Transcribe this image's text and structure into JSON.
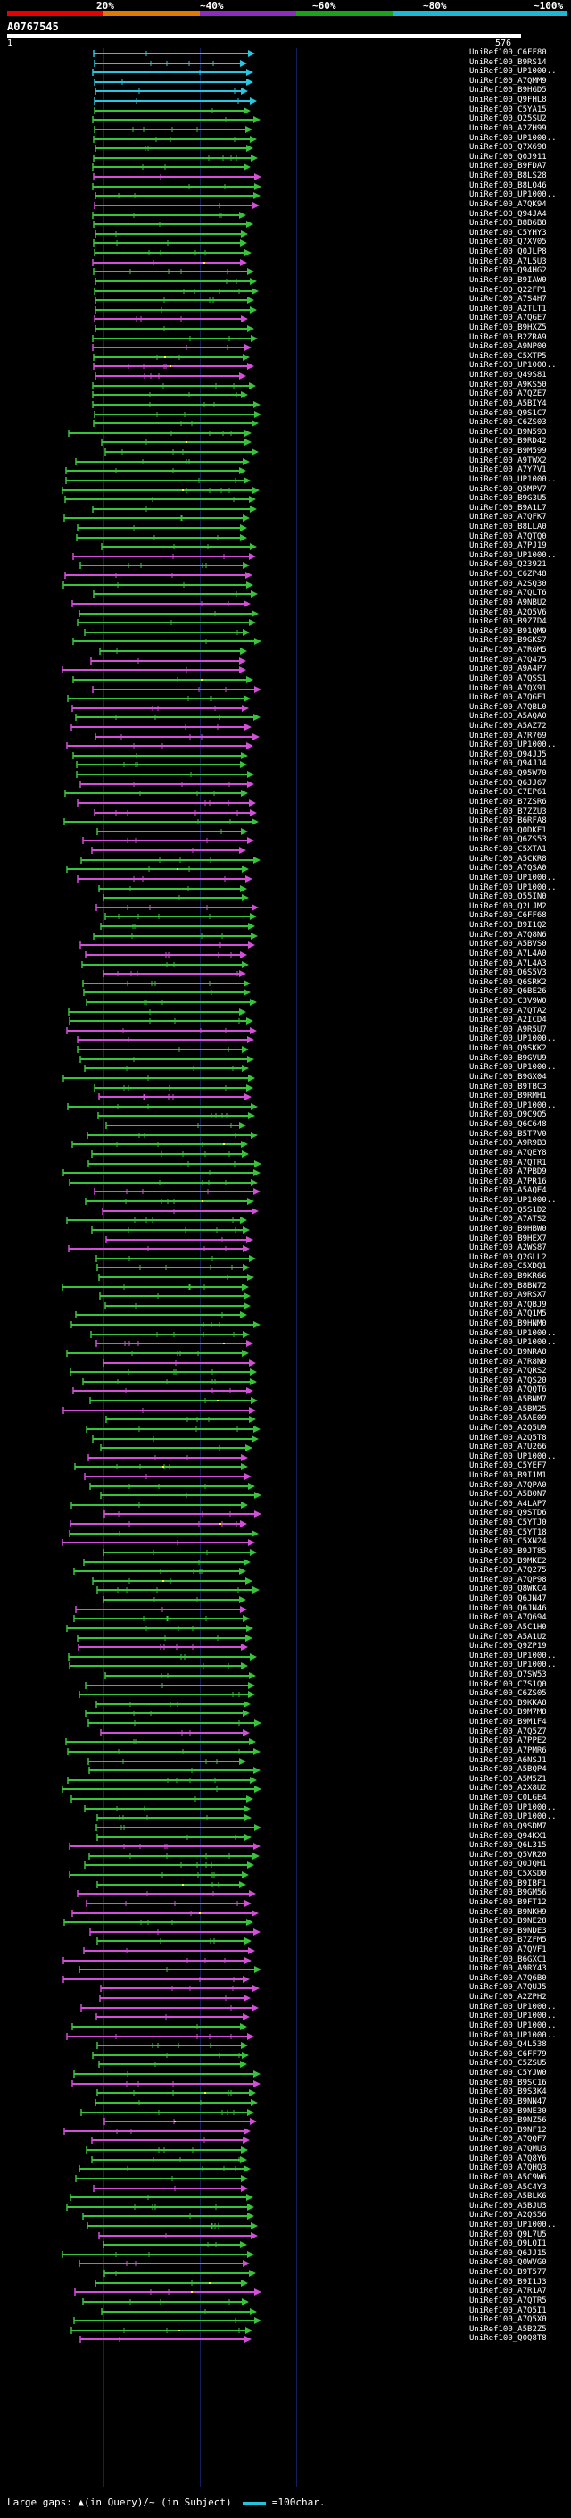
{
  "scale": {
    "ticks": [
      "20%",
      "~40%",
      "~60%",
      "~80%",
      "~100%"
    ],
    "colors": [
      "#e60000",
      "#e07a00",
      "#8c2bbd",
      "#1aa31a",
      "#1cb7d4"
    ]
  },
  "query": {
    "name": "A0767545",
    "start": "1",
    "end": "576"
  },
  "hit_colors": {
    "cyan": "#28c6e0",
    "green": "#38c43a",
    "magenta": "#d24fd8",
    "gap": "#ffff00",
    "bg_line": "#13215a"
  },
  "labels": [
    "UniRef100_C6FF80",
    "UniRef100_B9RS14",
    "UniRef100_UP1000..",
    "UniRef100_A7QMM9",
    "UniRef100_B9HGD5",
    "UniRef100_Q9FHL8",
    "UniRef100_C5YA15",
    "UniRef100_Q25SU2",
    "UniRef100_A2ZH99",
    "UniRef100_UP1000..",
    "UniRef100_Q7X698",
    "UniRef100_Q0J911",
    "UniRef100_B9FDA7",
    "UniRef100_B8LS28",
    "UniRef100_B8LQ46",
    "UniRef100_UP1000..",
    "UniRef100_A7QK94",
    "UniRef100_Q94JA4",
    "UniRef100_B8B6B8",
    "UniRef100_C5YHY3",
    "UniRef100_Q7XV05",
    "UniRef100_Q0JLP8",
    "UniRef100_A7L5U3",
    "UniRef100_Q94HG2",
    "UniRef100_B9IAW0",
    "UniRef100_Q22FP1",
    "UniRef100_A7S4H7",
    "UniRef100_A2TLT1",
    "UniRef100_A7QGE7",
    "UniRef100_B9HXZ5",
    "UniRef100_B2ZRA9",
    "UniRef100_A9NP00",
    "UniRef100_C5XTP5",
    "UniRef100_UP1000..",
    "UniRef100_Q49S81",
    "UniRef100_A9KS50",
    "UniRef100_A7QZE7",
    "UniRef100_A5BIY4",
    "UniRef100_Q9S1C7",
    "UniRef100_C6ZS03",
    "UniRef100_B9N593",
    "UniRef100_B9RD42",
    "UniRef100_B9M599",
    "UniRef100_A9TWX2",
    "UniRef100_A7Y7V1",
    "UniRef100_UP1000..",
    "UniRef100_Q5MPV7",
    "UniRef100_B9G3U5",
    "UniRef100_B9A1L7",
    "UniRef100_A7QFK7",
    "UniRef100_B8LLA0",
    "UniRef100_A7QTQ0",
    "UniRef100_A7PJ19",
    "UniRef100_UP1000..",
    "UniRef100_Q23921",
    "UniRef100_C6ZP48",
    "UniRef100_A2SQ30",
    "UniRef100_A7QLT6",
    "UniRef100_A9NBU2",
    "UniRef100_A2Q5V6",
    "UniRef100_B9Z7D4",
    "UniRef100_B91QM9",
    "UniRef100_B9GKS7",
    "UniRef100_A7R6M5",
    "UniRef100_A7Q475",
    "UniRef100_A9A4P7",
    "UniRef100_A7QSS1",
    "UniRef100_A7QX91",
    "UniRef100_A7QGE1",
    "UniRef100_A7QBL0",
    "UniRef100_A5AQA0",
    "UniRef100_A5AZ72",
    "UniRef100_A7R769",
    "UniRef100_UP1000..",
    "UniRef100_Q94JJ5",
    "UniRef100_Q94JJ4",
    "UniRef100_Q95W70",
    "UniRef100_Q6JJ67",
    "UniRef100_C7EP61",
    "UniRef100_B7ZSR6",
    "UniRef100_B7ZZU3",
    "UniRef100_B6RFA8",
    "UniRef100_Q0DKE1",
    "UniRef100_Q6ZS53",
    "UniRef100_C5XTA1",
    "UniRef100_A5CKR8",
    "UniRef100_A7QSA0",
    "UniRef100_UP1000..",
    "UniRef100_UP1000..",
    "UniRef100_Q55IN0",
    "UniRef100_Q2LJM2",
    "UniRef100_C6FF68",
    "UniRef100_B9I1Q2",
    "UniRef100_A7Q8N6",
    "UniRef100_A5BVS0",
    "UniRef100_A7L4A0",
    "UniRef100_A7L4A3",
    "UniRef100_Q6S5V3",
    "UniRef100_Q6SRK2",
    "UniRef100_Q6BE26",
    "UniRef100_C3V9W0",
    "UniRef100_A7QTA2",
    "UniRef100_A2ICD4",
    "UniRef100_A9R5U7",
    "UniRef100_UP1000..",
    "UniRef100_Q9SKK2",
    "UniRef100_B9GVU9",
    "UniRef100_UP1000..",
    "UniRef100_B9GX04",
    "UniRef100_B9TBC3",
    "UniRef100_B9RMH1",
    "UniRef100_UP1000..",
    "UniRef100_Q9C9Q5",
    "UniRef100_Q6C648",
    "UniRef100_B5T7V0",
    "UniRef100_A9R9B3",
    "UniRef100_A7QEY8",
    "UniRef100_A7QTR1",
    "UniRef100_A7PBD9",
    "UniRef100_A7PR16",
    "UniRef100_A5AQE4",
    "UniRef100_UP1000..",
    "UniRef100_Q5S1D2",
    "UniRef100_A7ATS2",
    "UniRef100_B9HBW0",
    "UniRef100_B9HEX7",
    "UniRef100_A2WS87",
    "UniRef100_Q2GLL2",
    "UniRef100_C5XDQ1",
    "UniRef100_B9KR66",
    "UniRef100_B8BN72",
    "UniRef100_A9RSX7",
    "UniRef100_A7QBJ9",
    "UniRef100_A7Q1M5",
    "UniRef100_B9HNM0",
    "UniRef100_UP1000..",
    "UniRef100_UP1000..",
    "UniRef100_B9NRA8",
    "UniRef100_A7R8N0",
    "UniRef100_A7QRS2",
    "UniRef100_A7QS20",
    "UniRef100_A7QQT6",
    "UniRef100_A5BNM7",
    "UniRef100_A5BM25",
    "UniRef100_A5AE09",
    "UniRef100_A2Q5U9",
    "UniRef100_A2Q5T8",
    "UniRef100_A7U266",
    "UniRef100_UP1000..",
    "UniRef100_C5YEF7",
    "UniRef100_B9I1M1",
    "UniRef100_A7QPA0",
    "UniRef100_A5B0N7",
    "UniRef100_A4LAP7",
    "UniRef100_Q9STD6",
    "UniRef100_C5YTJ0",
    "UniRef100_C5YT18",
    "UniRef100_C5XN24",
    "UniRef100_B9JT85",
    "UniRef100_B9MKE2",
    "UniRef100_A7Q275",
    "UniRef100_A7QP98",
    "UniRef100_Q8WKC4",
    "UniRef100_Q6JN47",
    "UniRef100_Q6JN46",
    "UniRef100_A7Q694",
    "UniRef100_A5C1H0",
    "UniRef100_A5A1U2",
    "UniRef100_Q9ZP19",
    "UniRef100_UP1000..",
    "UniRef100_UP1000..",
    "UniRef100_Q7SW53",
    "UniRef100_C7S1Q0",
    "UniRef100_C6ZS05",
    "UniRef100_B9KKA8",
    "UniRef100_B9M7M8",
    "UniRef100_B9M1F4",
    "UniRef100_A7Q5Z7",
    "UniRef100_A7PPE2",
    "UniRef100_A7PMR6",
    "UniRef100_A6NSJ1",
    "UniRef100_A5BQP4",
    "UniRef100_A5M5Z1",
    "UniRef100_A2X8U2",
    "UniRef100_C0LGE4",
    "UniRef100_UP1000..",
    "UniRef100_UP1000..",
    "UniRef100_Q9SDM7",
    "UniRef100_Q94KX1",
    "UniRef100_Q6L315",
    "UniRef100_Q5VR20",
    "UniRef100_Q0JQH1",
    "UniRef100_C5XSD0",
    "UniRef100_B9IBF1",
    "UniRef100_B9GM56",
    "UniRef100_B9FT12",
    "UniRef100_B9NKH9",
    "UniRef100_B9NE28",
    "UniRef100_B9NDE3",
    "UniRef100_B7ZFM5",
    "UniRef100_A7QVF1",
    "UniRef100_B6GXC1",
    "UniRef100_A9RY43",
    "UniRef100_A7Q6B0",
    "UniRef100_A7QUJ5",
    "UniRef100_A2ZPH2",
    "UniRef100_UP1000..",
    "UniRef100_UP1000..",
    "UniRef100_UP1000..",
    "UniRef100_UP1000..",
    "UniRef100_Q4L538",
    "UniRef100_C6FF79",
    "UniRef100_C5ZSU5",
    "UniRef100_C5YJW0",
    "UniRef100_B9SC16",
    "UniRef100_B9S3K4",
    "UniRef100_B9NN47",
    "UniRef100_B9NE30",
    "UniRef100_B9NZ56",
    "UniRef100_B9NF12",
    "UniRef100_A7QQF7",
    "UniRef100_A7QMU3",
    "UniRef100_A7Q8Y6",
    "UniRef100_A7QHQ3",
    "UniRef100_A5C9W6",
    "UniRef100_A5C4Y3",
    "UniRef100_A5BLK6",
    "UniRef100_A5BJU3",
    "UniRef100_A2QS56",
    "UniRef100_UP1000..",
    "UniRef100_Q9L7U5",
    "UniRef100_Q9LQI1",
    "UniRef100_Q6JJ15",
    "UniRef100_Q0WVG0",
    "UniRef100_B9T577",
    "UniRef100_B9I1J3",
    "UniRef100_A7R1A7",
    "UniRef100_A7QTR5",
    "UniRef100_A7Q5I1",
    "UniRef100_A7Q5X0",
    "UniRef100_A5B2Z5",
    "UniRef100_Q0Q8T8"
  ],
  "legend": {
    "text": "Large gaps: ▲(in Query)/~ (in Subject)",
    "triangle": "▲",
    "bar_label": "=100char."
  }
}
